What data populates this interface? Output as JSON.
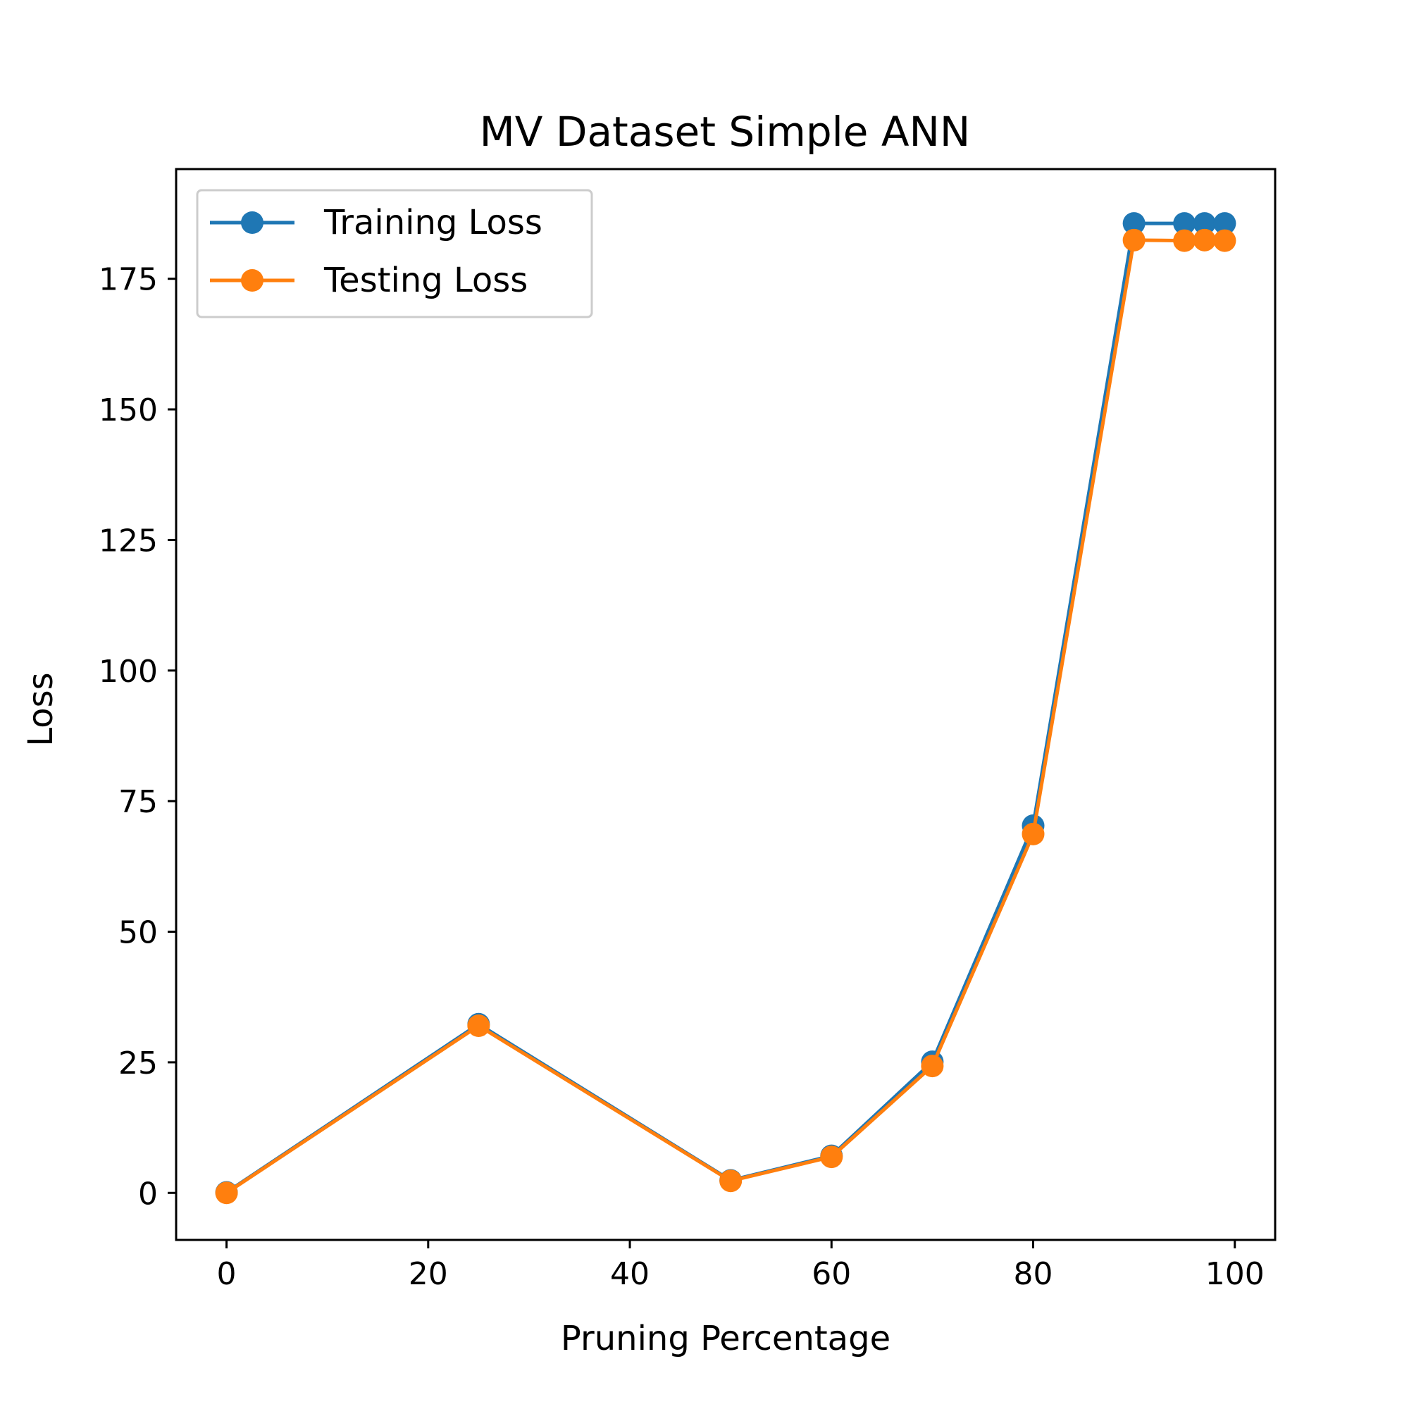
{
  "chart_data": {
    "type": "line",
    "title": "MV Dataset Simple ANN",
    "xlabel": "Pruning Percentage",
    "ylabel": "Loss",
    "xlim": [
      -5,
      104
    ],
    "ylim": [
      -9,
      196
    ],
    "xticks": [
      0,
      20,
      40,
      60,
      80,
      100
    ],
    "yticks": [
      0,
      25,
      50,
      75,
      100,
      125,
      150,
      175
    ],
    "grid": false,
    "legend_position": "upper-left",
    "x": [
      0,
      25,
      50,
      60,
      70,
      80,
      90,
      95,
      97,
      99
    ],
    "series": [
      {
        "name": "Training Loss",
        "color": "#1f77b4",
        "marker": "circle",
        "values": [
          0.1,
          32.3,
          2.4,
          7.1,
          25.1,
          70.3,
          185.6,
          185.6,
          185.6,
          185.6
        ]
      },
      {
        "name": "Testing Loss",
        "color": "#ff7f0e",
        "marker": "circle",
        "values": [
          0.0,
          32.0,
          2.3,
          6.9,
          24.3,
          68.7,
          182.4,
          182.3,
          182.4,
          182.3
        ]
      }
    ]
  }
}
